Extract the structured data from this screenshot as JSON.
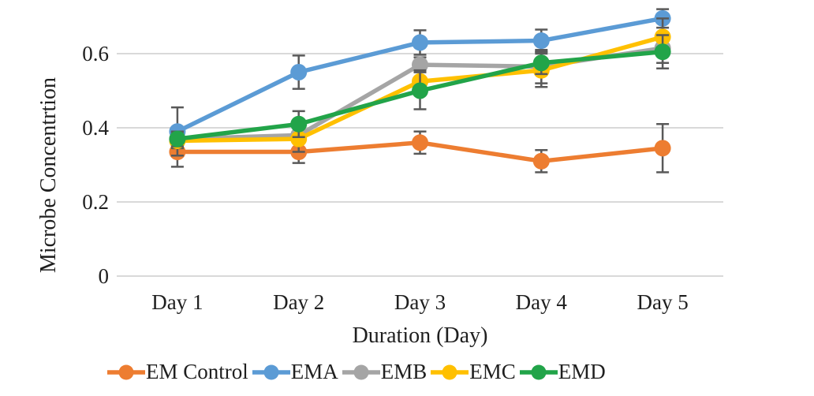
{
  "chart_data": {
    "type": "line",
    "title": "",
    "xlabel": "Duration (Day)",
    "ylabel": "Microbe Concentrtion",
    "categories": [
      "Day 1",
      "Day 2",
      "Day 3",
      "Day 4",
      "Day 5"
    ],
    "yticks": [
      0,
      0.2,
      0.4,
      0.6
    ],
    "ytick_labels": [
      "0",
      "0.2",
      "0.4",
      "0.6"
    ],
    "ylim": [
      0,
      0.72
    ],
    "grid": true,
    "legend_position": "bottom",
    "gridline_color": "#D9D9D9",
    "error_bar_color": "#595959",
    "series": [
      {
        "name": "EM Control",
        "color": "#ED7D31",
        "values": [
          0.335,
          0.335,
          0.36,
          0.31,
          0.345
        ],
        "errors": [
          0.04,
          0.03,
          0.03,
          0.03,
          0.065
        ]
      },
      {
        "name": "EMA",
        "color": "#5B9BD5",
        "values": [
          0.39,
          0.55,
          0.63,
          0.635,
          0.695
        ],
        "errors": [
          0.065,
          0.045,
          0.033,
          0.03,
          0.025
        ]
      },
      {
        "name": "EMB",
        "color": "#A5A5A5",
        "values": [
          0.37,
          0.38,
          0.57,
          0.565,
          0.615
        ],
        "errors": [
          0.02,
          0.02,
          0.02,
          0.045,
          0.04
        ]
      },
      {
        "name": "EMC",
        "color": "#FFC000",
        "values": [
          0.365,
          0.37,
          0.525,
          0.555,
          0.645
        ],
        "errors": [
          0.02,
          0.035,
          0.03,
          0.045,
          0.05
        ]
      },
      {
        "name": "EMD",
        "color": "#22A449",
        "values": [
          0.37,
          0.41,
          0.5,
          0.575,
          0.605
        ],
        "errors": [
          0.02,
          0.035,
          0.05,
          0.03,
          0.045
        ]
      }
    ]
  }
}
